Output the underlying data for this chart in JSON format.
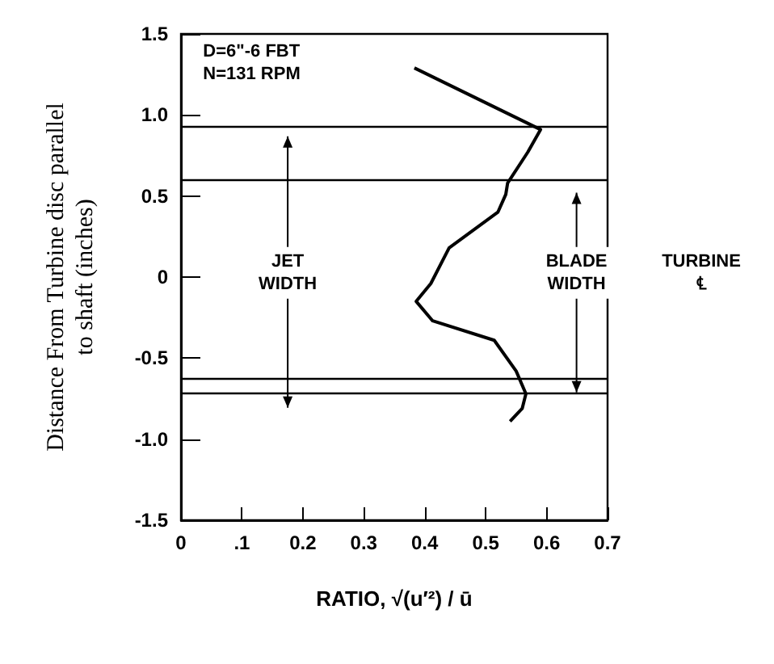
{
  "chart_data": {
    "type": "line",
    "xlabel": "RATIO, √(u′²) / ū",
    "ylabel": "Distance From Turbine disc parallel\nto shaft (inches)",
    "x": [
      0.383,
      0.59,
      0.569,
      0.536,
      0.533,
      0.52,
      0.44,
      0.41,
      0.386,
      0.413,
      0.514,
      0.55,
      0.566,
      0.56,
      0.54
    ],
    "series": [
      {
        "color": "#000000",
        "values": [
          1.29,
          0.91,
          0.77,
          0.58,
          0.51,
          0.4,
          0.18,
          -0.04,
          -0.15,
          -0.27,
          -0.39,
          -0.58,
          -0.72,
          -0.81,
          -0.89
        ]
      }
    ],
    "xlim": [
      0,
      0.7
    ],
    "ylim": [
      -1.5,
      1.5
    ],
    "xticks": [
      0,
      {
        "value": 0.1,
        "label": ".1"
      },
      0.2,
      0.3,
      0.4,
      0.5,
      0.6,
      0.7
    ],
    "yticks": [
      {
        "value": -1.5,
        "label": "-1.5"
      },
      {
        "value": -1,
        "label": "-1.0"
      },
      {
        "value": -0.5,
        "label": "-0.5"
      },
      0,
      0.5,
      {
        "value": 1,
        "label": "1.0"
      },
      1.5
    ],
    "ref_lines": [
      {
        "axis": "y",
        "value": 0.93,
        "color": "#000000"
      },
      {
        "axis": "y",
        "value": 0.6,
        "color": "#000000"
      },
      {
        "axis": "y",
        "value": -0.63,
        "color": "#000000"
      },
      {
        "axis": "y",
        "value": -0.72,
        "color": "#000000"
      }
    ],
    "annotations": [
      "D=6\"-6 FBT\nN=131 RPM",
      "JET\nWIDTH",
      "BLADE\nWIDTH",
      "TURBINE\n℄"
    ],
    "grid": false,
    "marker": "none",
    "line_style": "solid"
  }
}
